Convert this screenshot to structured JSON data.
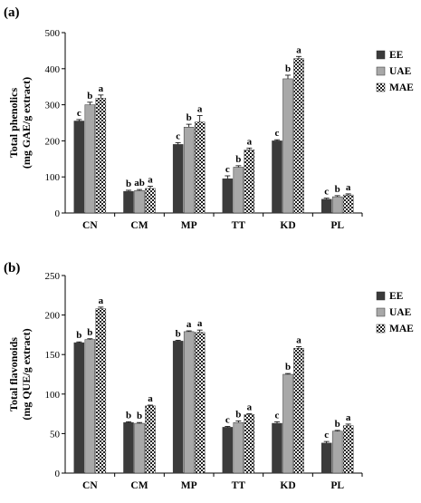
{
  "chart_data": [
    {
      "type": "bar",
      "panel_label": "(a)",
      "title": "",
      "xlabel": "",
      "ylabel": "Total phenolics",
      "ylabel2": "(mg GAE/g extract)",
      "ylim": [
        0,
        500
      ],
      "yticks": [
        0,
        100,
        200,
        300,
        400,
        500
      ],
      "categories": [
        "CN",
        "CM",
        "MP",
        "TT",
        "KD",
        "PL"
      ],
      "series": [
        {
          "name": "EE",
          "pattern": "solid-dark",
          "color": "#3a3a3a",
          "values": [
            255,
            60,
            190,
            95,
            200,
            38
          ],
          "errors": [
            4,
            3,
            5,
            8,
            3,
            3
          ],
          "letters": [
            "c",
            "b",
            "c",
            "c",
            "c",
            "c"
          ]
        },
        {
          "name": "UAE",
          "pattern": "solid-gray",
          "color": "#a6a6a6",
          "values": [
            300,
            62,
            238,
            127,
            372,
            45
          ],
          "errors": [
            7,
            3,
            8,
            4,
            10,
            3
          ],
          "letters": [
            "b",
            "ab",
            "b",
            "b",
            "b",
            "b"
          ]
        },
        {
          "name": "MAE",
          "pattern": "checkered",
          "color": "#2a2a2a",
          "values": [
            318,
            68,
            252,
            175,
            428,
            50
          ],
          "errors": [
            9,
            6,
            18,
            5,
            6,
            3
          ],
          "letters": [
            "a",
            "a",
            "a",
            "a",
            "a",
            "a"
          ]
        }
      ],
      "legend_position": "right",
      "grid": false
    },
    {
      "type": "bar",
      "panel_label": "(b)",
      "title": "",
      "xlabel": "",
      "ylabel": "Total flavonoids",
      "ylabel2": "(mg QUE/g extract)",
      "ylim": [
        0,
        250
      ],
      "yticks": [
        0,
        50,
        100,
        150,
        200,
        250
      ],
      "categories": [
        "CN",
        "CM",
        "MP",
        "TT",
        "KD",
        "PL"
      ],
      "series": [
        {
          "name": "EE",
          "pattern": "solid-dark",
          "color": "#3a3a3a",
          "values": [
            165,
            64,
            167,
            58,
            63,
            38
          ],
          "errors": [
            1,
            1,
            1,
            1,
            2,
            2
          ],
          "letters": [
            "b",
            "b",
            "b",
            "c",
            "c",
            "c"
          ]
        },
        {
          "name": "UAE",
          "pattern": "solid-gray",
          "color": "#a6a6a6",
          "values": [
            169,
            63,
            179,
            64,
            125,
            53
          ],
          "errors": [
            1,
            1,
            1,
            2,
            1,
            1
          ],
          "letters": [
            "b",
            "b",
            "a",
            "b",
            "b",
            "b"
          ]
        },
        {
          "name": "MAE",
          "pattern": "checkered",
          "color": "#2a2a2a",
          "values": [
            208,
            85,
            178,
            74,
            158,
            60
          ],
          "errors": [
            2,
            1,
            3,
            1,
            2,
            2
          ],
          "letters": [
            "a",
            "a",
            "a",
            "a",
            "a",
            "a"
          ]
        }
      ],
      "legend_position": "right",
      "grid": false
    }
  ]
}
